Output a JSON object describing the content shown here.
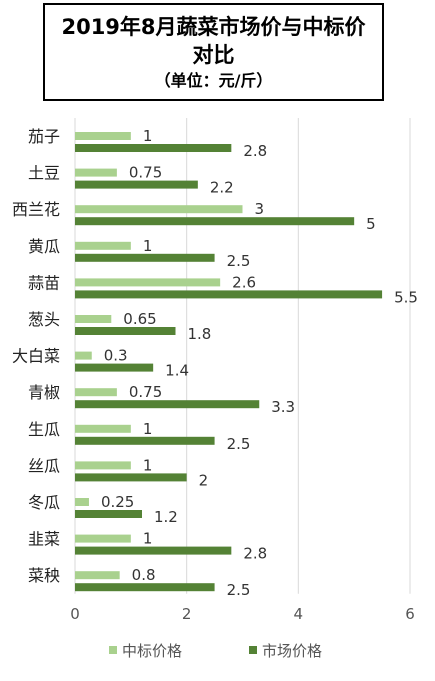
{
  "title": {
    "line1": "2019年8月蔬菜市场价与中标价",
    "line2": "对比",
    "subtitle": "（单位：元/斤）"
  },
  "chart_data": {
    "type": "bar",
    "orientation": "horizontal",
    "categories": [
      "茄子",
      "土豆",
      "西兰花",
      "黄瓜",
      "蒜苗",
      "葱头",
      "大白菜",
      "青椒",
      "生瓜",
      "丝瓜",
      "冬瓜",
      "韭菜",
      "菜秧"
    ],
    "series": [
      {
        "name": "中标价格",
        "color": "#a9d18e",
        "values": [
          1,
          0.75,
          3,
          1,
          2.6,
          0.65,
          0.3,
          0.75,
          1,
          1,
          0.25,
          1,
          0.8
        ],
        "labels": [
          "1",
          "0.75",
          "3",
          "1",
          "2.6",
          "0.65",
          "0.3",
          "0.75",
          "1",
          "1",
          "0.25",
          "1",
          "0.8"
        ]
      },
      {
        "name": "市场价格",
        "color": "#548235",
        "values": [
          2.8,
          2.2,
          5,
          2.5,
          5.5,
          1.8,
          1.4,
          3.3,
          2.5,
          2,
          1.2,
          2.8,
          2.5
        ],
        "labels": [
          "2.8",
          "2.2",
          "5",
          "2.5",
          "5.5",
          "1.8",
          "1.4",
          "3.3",
          "2.5",
          "2",
          "1.2",
          "2.8",
          "2.5"
        ]
      }
    ],
    "xlim": [
      0,
      6
    ],
    "xticks": [
      "0",
      "2",
      "4",
      "6"
    ],
    "grid": true,
    "legend": "bottom"
  }
}
